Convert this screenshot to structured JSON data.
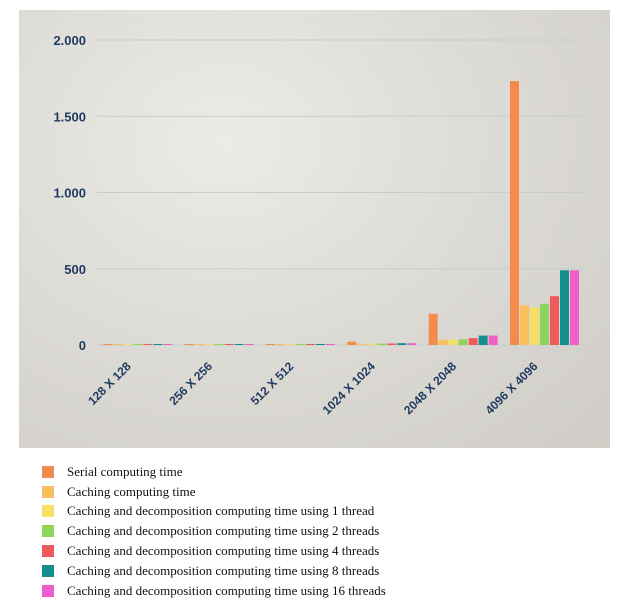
{
  "chart_data": {
    "type": "bar",
    "title": "",
    "xlabel": "",
    "ylabel": "",
    "ylim": [
      0,
      2000
    ],
    "yticks": [
      0,
      500,
      1000,
      1500,
      2000
    ],
    "ytick_labels": [
      "0",
      "500",
      "1.000",
      "1.500",
      "2.000"
    ],
    "grid": true,
    "legend_position": "bottom",
    "categories": [
      "128 X 128",
      "256 X 256",
      "512 X 512",
      "1024 X 1024",
      "2048 X 2048",
      "4096 X 4096"
    ],
    "series": [
      {
        "name": "Serial computing time",
        "color": "#f58a4b",
        "values": [
          0.5,
          1,
          4,
          22,
          205,
          1730
        ]
      },
      {
        "name": "Caching computing time",
        "color": "#f9bf5c",
        "values": [
          0.3,
          0.8,
          2,
          8,
          35,
          260
        ]
      },
      {
        "name": "Caching and decomposition computing time using 1 thread",
        "color": "#f5e064",
        "values": [
          0.3,
          0.8,
          2,
          8,
          35,
          245
        ]
      },
      {
        "name": "Caching and decomposition computing time using 2 threads",
        "color": "#8fd45c",
        "values": [
          0.3,
          0.8,
          2,
          9,
          38,
          270
        ]
      },
      {
        "name": "Caching and decomposition computing time using 4 threads",
        "color": "#ef5b5b",
        "values": [
          0.4,
          1,
          3,
          10,
          45,
          320
        ]
      },
      {
        "name": "Caching and decomposition computing time using 8 threads",
        "color": "#14908c",
        "values": [
          0.5,
          1.5,
          4,
          12,
          62,
          490
        ]
      },
      {
        "name": "Caching and decomposition computing time using 16 threads",
        "color": "#f05fc8",
        "values": [
          0.5,
          1.5,
          4,
          12,
          62,
          490
        ]
      }
    ]
  }
}
